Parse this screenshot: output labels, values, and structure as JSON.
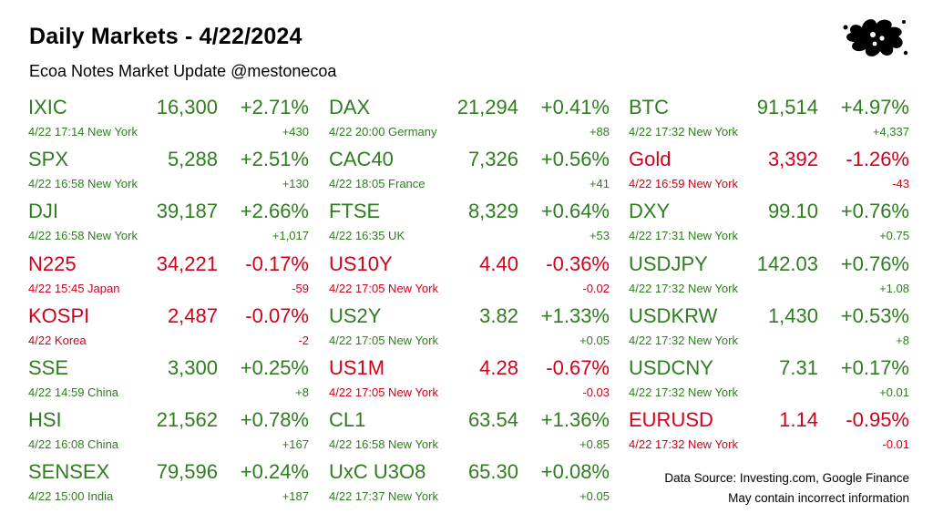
{
  "header": {
    "title": "Daily Markets - 4/22/2024",
    "subtitle": "Ecoa Notes Market Update @mestonecoa"
  },
  "logo": {
    "icon": "ink-splat-logo-icon",
    "color": "#000000"
  },
  "colors": {
    "up": "#2e7d1f",
    "down": "#d0021b"
  },
  "columns": [
    [
      {
        "symbol": "IXIC",
        "price": "16,300",
        "pct": "+2.71%",
        "meta": "4/22 17:14 New York",
        "change": "+430",
        "dir": "up"
      },
      {
        "symbol": "SPX",
        "price": "5,288",
        "pct": "+2.51%",
        "meta": "4/22 16:58 New York",
        "change": "+130",
        "dir": "up"
      },
      {
        "symbol": "DJI",
        "price": "39,187",
        "pct": "+2.66%",
        "meta": "4/22 16:58 New York",
        "change": "+1,017",
        "dir": "up"
      },
      {
        "symbol": "N225",
        "price": "34,221",
        "pct": "-0.17%",
        "meta": "4/22 15:45 Japan",
        "change": "-59",
        "dir": "down"
      },
      {
        "symbol": "KOSPI",
        "price": "2,487",
        "pct": "-0.07%",
        "meta": "4/22  Korea",
        "change": "-2",
        "dir": "down"
      },
      {
        "symbol": "SSE",
        "price": "3,300",
        "pct": "+0.25%",
        "meta": "4/22 14:59 China",
        "change": "+8",
        "dir": "up"
      },
      {
        "symbol": "HSI",
        "price": "21,562",
        "pct": "+0.78%",
        "meta": "4/22 16:08 China",
        "change": "+167",
        "dir": "up"
      },
      {
        "symbol": "SENSEX",
        "price": "79,596",
        "pct": "+0.24%",
        "meta": "4/22 15:00 India",
        "change": "+187",
        "dir": "up"
      }
    ],
    [
      {
        "symbol": "DAX",
        "price": "21,294",
        "pct": "+0.41%",
        "meta": "4/22 20:00 Germany",
        "change": "+88",
        "dir": "up"
      },
      {
        "symbol": "CAC40",
        "price": "7,326",
        "pct": "+0.56%",
        "meta": "4/22 18:05 France",
        "change": "+41",
        "dir": "up"
      },
      {
        "symbol": "FTSE",
        "price": "8,329",
        "pct": "+0.64%",
        "meta": "4/22 16:35 UK",
        "change": "+53",
        "dir": "up"
      },
      {
        "symbol": "US10Y",
        "price": "4.40",
        "pct": "-0.36%",
        "meta": "4/22 17:05 New York",
        "change": "-0.02",
        "dir": "down"
      },
      {
        "symbol": "US2Y",
        "price": "3.82",
        "pct": "+1.33%",
        "meta": "4/22 17:05 New York",
        "change": "+0.05",
        "dir": "up"
      },
      {
        "symbol": "US1M",
        "price": "4.28",
        "pct": "-0.67%",
        "meta": "4/22 17:05 New York",
        "change": "-0.03",
        "dir": "down"
      },
      {
        "symbol": "CL1",
        "price": "63.54",
        "pct": "+1.36%",
        "meta": "4/22 16:58 New York",
        "change": "+0.85",
        "dir": "up"
      },
      {
        "symbol": "UxC U3O8",
        "price": "65.30",
        "pct": "+0.08%",
        "meta": "4/22 17:37 New York",
        "change": "+0.05",
        "dir": "up"
      }
    ],
    [
      {
        "symbol": "BTC",
        "price": "91,514",
        "pct": "+4.97%",
        "meta": "4/22 17:32 New York",
        "change": "+4,337",
        "dir": "up"
      },
      {
        "symbol": "Gold",
        "price": "3,392",
        "pct": "-1.26%",
        "meta": "4/22 16:59 New York",
        "change": "-43",
        "dir": "down"
      },
      {
        "symbol": "DXY",
        "price": "99.10",
        "pct": "+0.76%",
        "meta": "4/22 17:31 New York",
        "change": "+0.75",
        "dir": "up"
      },
      {
        "symbol": "USDJPY",
        "price": "142.03",
        "pct": "+0.76%",
        "meta": "4/22 17:32 New York",
        "change": "+1.08",
        "dir": "up"
      },
      {
        "symbol": "USDKRW",
        "price": "1,430",
        "pct": "+0.53%",
        "meta": "4/22 17:32 New York",
        "change": "+8",
        "dir": "up"
      },
      {
        "symbol": "USDCNY",
        "price": "7.31",
        "pct": "+0.17%",
        "meta": "4/22 17:32 New York",
        "change": "+0.01",
        "dir": "up"
      },
      {
        "symbol": "EURUSD",
        "price": "1.14",
        "pct": "-0.95%",
        "meta": "4/22 17:32 New York",
        "change": "-0.01",
        "dir": "down"
      }
    ]
  ],
  "footer": {
    "source": "Data Source: Investing.com, Google Finance",
    "disclaimer": "May contain incorrect information"
  }
}
